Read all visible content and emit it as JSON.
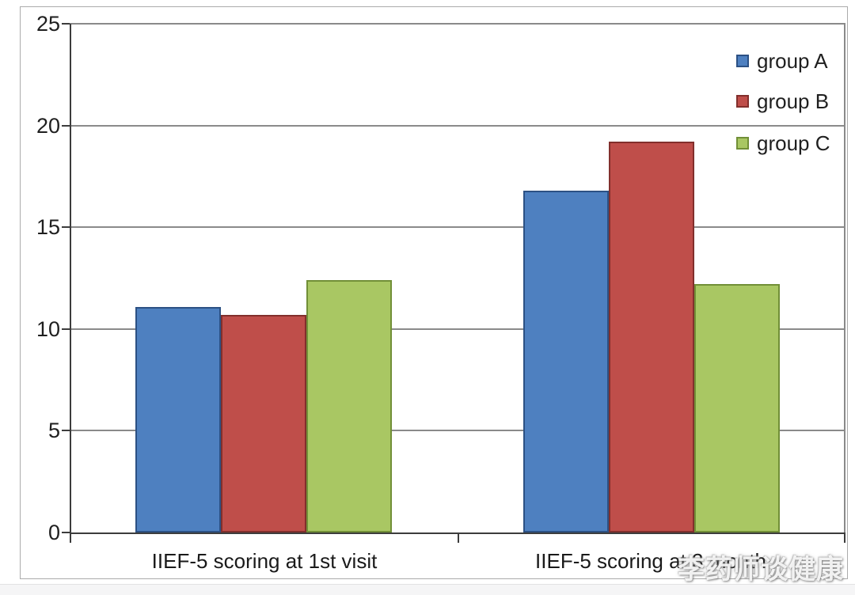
{
  "chart_data": {
    "type": "bar",
    "title": "",
    "xlabel": "",
    "ylabel": "",
    "categories": [
      "IIEF-5 scoring at 1st visit",
      "IIEF-5 scoring at 3 month"
    ],
    "series": [
      {
        "name": "group A",
        "color": "#4e80c0",
        "border_color": "#2c5184",
        "values": [
          11.1,
          16.8
        ]
      },
      {
        "name": "group B",
        "color": "#bf4e4a",
        "border_color": "#822f2c",
        "values": [
          10.7,
          19.2
        ]
      },
      {
        "name": "group C",
        "color": "#a9c763",
        "border_color": "#718f37",
        "values": [
          12.4,
          12.2
        ]
      }
    ],
    "ylim": [
      0,
      25
    ],
    "yticks": [
      "0",
      "5",
      "10",
      "15",
      "20",
      "25"
    ],
    "grid": true,
    "legend_position": "top-right"
  },
  "watermark": {
    "text": "李药师谈健康"
  }
}
